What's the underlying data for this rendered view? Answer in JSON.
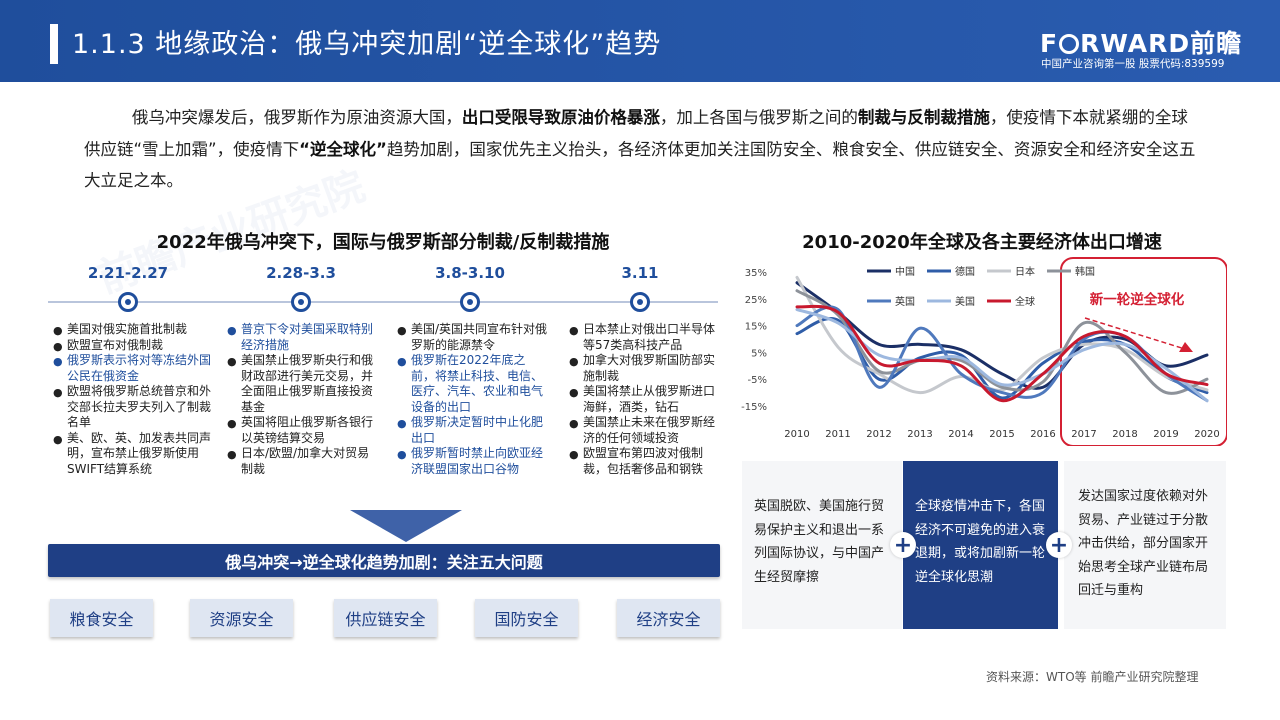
{
  "header": {
    "title": "1.1.3 地缘政治：俄乌冲突加剧“逆全球化”趋势",
    "logo_left": "F",
    "logo_right": "RWARD前瞻",
    "tagline": "中国产业咨询第一股 股票代码:839599"
  },
  "intro": {
    "line1_a": "俄乌冲突爆发后，俄罗斯作为原油资源大国，",
    "line1_b": "出口受限导致原油价格暴涨",
    "line1_c": "，加上各国与俄罗斯之间的",
    "line1_d": "制裁与反制裁措施",
    "line1_e": "，使疫情下本就紧绷的全球供应链“雪上加霜”，使疫情下",
    "line2_a": "“逆全球化”",
    "line2_b": "趋势加剧，国家优先主义抬头，各经济体更加关注国防安全、粮食安全、供应链安全、资源安全和经济安全这五大立足之本。"
  },
  "left": {
    "title": "2022年俄乌冲突下，国际与俄罗斯部分制裁/反制裁措施",
    "columns": [
      {
        "date": "2.21-2.27",
        "items": [
          {
            "text": "美国对俄实施首批制裁",
            "color": "black"
          },
          {
            "text": "欧盟宣布对俄制裁",
            "color": "black"
          },
          {
            "text": "俄罗斯表示将对等冻结外国公民在俄资金",
            "color": "blue"
          },
          {
            "text": "欧盟将俄罗斯总统普京和外交部长拉夫罗夫列入了制裁名单",
            "color": "black"
          },
          {
            "text": "美、欧、英、加发表共同声明，宣布禁止俄罗斯使用SWIFT结算系统",
            "color": "black"
          }
        ]
      },
      {
        "date": "2.28-3.3",
        "items": [
          {
            "text": "普京下令对美国采取特别经济措施",
            "color": "blue"
          },
          {
            "text": "美国禁止俄罗斯央行和俄财政部进行美元交易，并全面阻止俄罗斯直接投资基金",
            "color": "black"
          },
          {
            "text": "英国将阻止俄罗斯各银行以英镑结算交易",
            "color": "black"
          },
          {
            "text": "日本/欧盟/加拿大对贸易制裁",
            "color": "black"
          }
        ]
      },
      {
        "date": "3.8-3.10",
        "items": [
          {
            "text": "美国/英国共同宣布针对俄罗斯的能源禁令",
            "color": "black"
          },
          {
            "text": "俄罗斯在2022年底之前，将禁止科技、电信、医疗、汽车、农业和电气设备的出口",
            "color": "blue"
          },
          {
            "text": "俄罗斯决定暂时中止化肥出口",
            "color": "blue"
          },
          {
            "text": "俄罗斯暂时禁止向欧亚经济联盟国家出口谷物",
            "color": "blue"
          }
        ]
      },
      {
        "date": "3.11",
        "items": [
          {
            "text": "日本禁止对俄出口半导体等57类高科技产品",
            "color": "black"
          },
          {
            "text": "加拿大对俄罗斯国防部实施制裁",
            "color": "black"
          },
          {
            "text": "美国将禁止从俄罗斯进口海鲜，酒类，钻石",
            "color": "black"
          },
          {
            "text": "美国禁止未来在俄罗斯经济的任何领域投资",
            "color": "black"
          },
          {
            "text": "欧盟宣布第四波对俄制裁，包括奢侈品和钢铁",
            "color": "black"
          }
        ]
      }
    ],
    "banner": "俄乌冲突→逆全球化趋势加剧：关注五大问题",
    "tags": [
      "粮食安全",
      "资源安全",
      "供应链安全",
      "国防安全",
      "经济安全"
    ]
  },
  "right": {
    "title": "2010-2020年全球及各主要经济体出口增速",
    "boxes": [
      "英国脱欧、美国施行贸易保护主义和退出一系列国际协议，与中国产生经贸摩擦",
      "全球疫情冲击下，各国经济不可避免的进入衰退期，或将加剧新一轮逆全球化思潮",
      "发达国家过度依赖对外贸易、产业链过于分散冲击供给，部分国家开始思考全球产业链布局回迁与重构"
    ]
  },
  "chart_data": {
    "type": "line",
    "title": "2010-2020年全球及各主要经济体出口增速",
    "x": [
      "2010",
      "2011",
      "2012",
      "2013",
      "2014",
      "2015",
      "2016",
      "2017",
      "2018",
      "2019",
      "2020"
    ],
    "y_ticks": [
      "35%",
      "25%",
      "15%",
      "5%",
      "-5%",
      "-15%"
    ],
    "ylim": [
      -15,
      35
    ],
    "annotation": "新一轮逆全球化",
    "series": [
      {
        "name": "中国",
        "color": "#1b2f66",
        "values": [
          31,
          20,
          8,
          8,
          6,
          -3,
          -8,
          8,
          10,
          0,
          4
        ]
      },
      {
        "name": "德国",
        "color": "#2f5da8",
        "values": [
          12,
          17,
          -5,
          3,
          4,
          -12,
          1,
          9,
          8,
          -4,
          -10
        ]
      },
      {
        "name": "日本",
        "color": "#c5c8cd",
        "values": [
          33,
          7,
          -3,
          -10,
          -4,
          -9,
          3,
          8,
          6,
          -4,
          -9
        ]
      },
      {
        "name": "韩国",
        "color": "#8d929a",
        "values": [
          28,
          19,
          -2,
          2,
          2,
          -8,
          -6,
          16,
          5,
          -10,
          -5
        ]
      },
      {
        "name": "英国",
        "color": "#4f79bd",
        "values": [
          15,
          21,
          -8,
          14,
          -3,
          -10,
          -10,
          10,
          11,
          -3,
          -13
        ]
      },
      {
        "name": "美国",
        "color": "#9db8df",
        "values": [
          21,
          16,
          4,
          2,
          3,
          -7,
          -3,
          6,
          8,
          -1,
          -13
        ]
      },
      {
        "name": "全球",
        "color": "#c8192e",
        "values": [
          22,
          20,
          1,
          2,
          0,
          -13,
          -3,
          11,
          11,
          -3,
          -7
        ]
      }
    ]
  },
  "source": "资料来源：WTO等 前瞻产业研究院整理",
  "watermark": "前瞻产业研究院"
}
